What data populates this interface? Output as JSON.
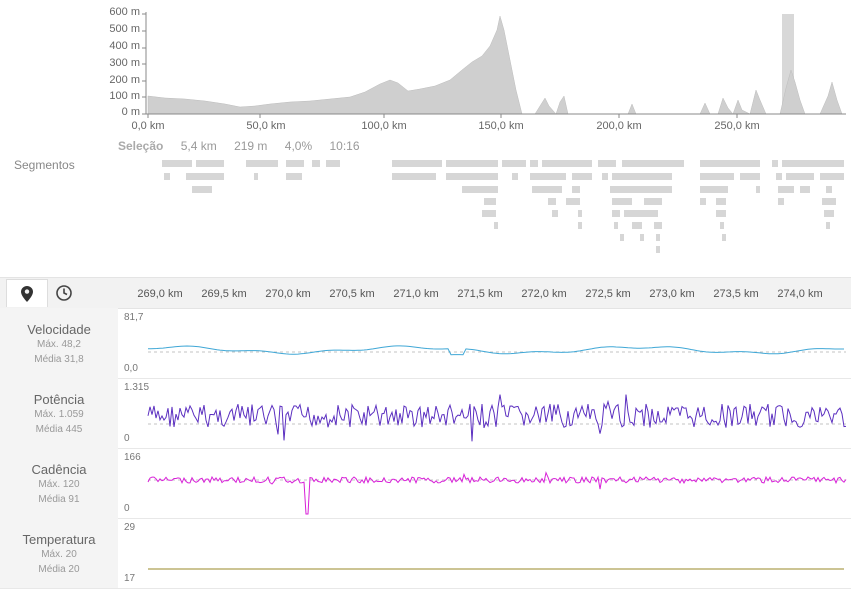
{
  "elevation": {
    "y_ticks": [
      "600 m",
      "500 m",
      "400 m",
      "300 m",
      "200 m",
      "100 m",
      "0 m"
    ],
    "x_ticks": [
      "0,0 km",
      "50,0 km",
      "100,0 km",
      "150,0 km",
      "200,0 km",
      "250,0 km"
    ]
  },
  "selection": {
    "title": "Seleção",
    "distance": "5,4 km",
    "elevation": "219 m",
    "grade": "4,0%",
    "time": "10:16"
  },
  "segments": {
    "label": "Segmentos"
  },
  "toolbar": {
    "tabs": [
      {
        "name": "map-pin-icon",
        "active": true
      },
      {
        "name": "clock-icon",
        "active": false
      }
    ],
    "x_ticks": [
      "269,0 km",
      "269,5 km",
      "270,0 km",
      "270,5 km",
      "271,0 km",
      "271,5 km",
      "272,0 km",
      "272,5 km",
      "273,0 km",
      "273,5 km",
      "274,0 km"
    ]
  },
  "metrics": [
    {
      "title": "Velocidade",
      "max_label": "Máx. 48,2",
      "avg_label": "Média 31,8",
      "scale_max": "81,7",
      "scale_min": "0,0",
      "color": "#3fa7d6"
    },
    {
      "title": "Potência",
      "max_label": "Máx. 1.059",
      "avg_label": "Média 445",
      "scale_max": "1.315",
      "scale_min": "0",
      "color": "#5b2fc0"
    },
    {
      "title": "Cadência",
      "max_label": "Máx. 120",
      "avg_label": "Média 91",
      "scale_max": "166",
      "scale_min": "0",
      "color": "#d81fd8"
    },
    {
      "title": "Temperatura",
      "max_label": "Máx. 20",
      "avg_label": "Média 20",
      "scale_max": "29",
      "scale_min": "17",
      "color": "#9a8a2a"
    }
  ]
}
